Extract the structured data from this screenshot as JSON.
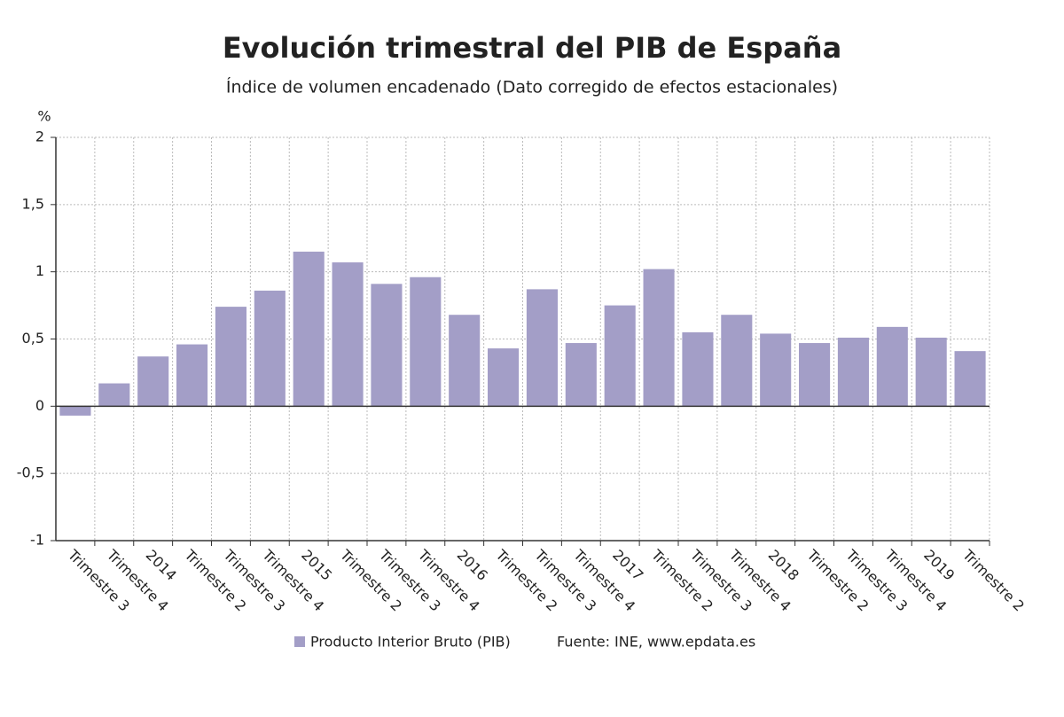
{
  "chart_data": {
    "type": "bar",
    "title": "Evolución trimestral del PIB de España",
    "subtitle": "Índice de volumen encadenado (Dato corregido de efectos estacionales)",
    "y_label": "%",
    "categories": [
      "Trimestre 3",
      "Trimestre 4",
      "2014",
      "Trimestre 2",
      "Trimestre 3",
      "Trimestre 4",
      "2015",
      "Trimestre 2",
      "Trimestre 3",
      "Trimestre 4",
      "2016",
      "Trimestre 2",
      "Trimestre 3",
      "Trimestre 4",
      "2017",
      "Trimestre 2",
      "Trimestre 3",
      "Trimestre 4",
      "2018",
      "Trimestre 2",
      "Trimestre 3",
      "Trimestre 4",
      "2019",
      "Trimestre 2"
    ],
    "series": [
      {
        "name": "Producto Interior Bruto (PIB)",
        "color": "#a39ec7",
        "values": [
          -0.07,
          0.17,
          0.37,
          0.46,
          0.74,
          0.86,
          1.15,
          1.07,
          0.91,
          0.96,
          0.68,
          0.43,
          0.87,
          0.47,
          0.75,
          1.02,
          0.55,
          0.68,
          0.54,
          0.47,
          0.51,
          0.59,
          0.51,
          0.41
        ]
      }
    ],
    "ylim": [
      -1,
      2
    ],
    "yticks": [
      {
        "value": -1,
        "label": "-1"
      },
      {
        "value": -0.5,
        "label": "-0,5"
      },
      0,
      {
        "value": 0.5,
        "label": "0,5"
      },
      1,
      {
        "value": 1.5,
        "label": "1,5"
      },
      2
    ],
    "grid": true,
    "source": "Fuente: INE, www.epdata.es"
  }
}
